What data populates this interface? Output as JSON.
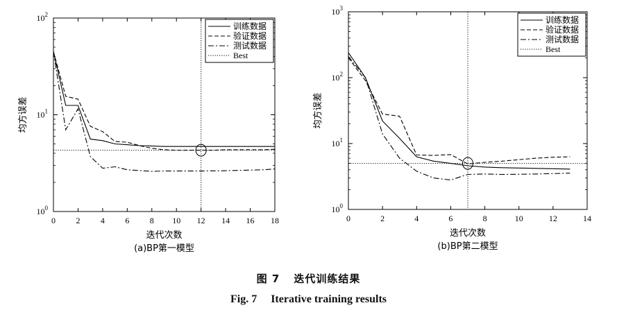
{
  "figure": {
    "caption_cn_label": "图 7",
    "caption_cn_text": "迭代训练结果",
    "caption_en_label": "Fig. 7",
    "caption_en_text": "Iterative training results"
  },
  "chart_data": [
    {
      "type": "line",
      "subtitle": "(a)BP第一模型",
      "xlabel": "迭代次数",
      "ylabel": "均方误差",
      "xlim": [
        0,
        18
      ],
      "xticks": [
        0,
        2,
        4,
        6,
        8,
        10,
        12,
        14,
        16,
        18
      ],
      "ylim": [
        1,
        100
      ],
      "yscale": "log",
      "yticks": [
        {
          "value": 1,
          "base": "10",
          "exp": "0"
        },
        {
          "value": 10,
          "base": "10",
          "exp": "1"
        },
        {
          "value": 100,
          "base": "10",
          "exp": "2"
        }
      ],
      "legend_position": "top-right",
      "best": {
        "x": 12,
        "y": 4.3,
        "label": "Best"
      },
      "series": [
        {
          "name": "训练数据",
          "style": "solid",
          "x": [
            0,
            1,
            2,
            3,
            4,
            5,
            6,
            7,
            8,
            9,
            10,
            11,
            12,
            13,
            14,
            15,
            16,
            17,
            18
          ],
          "y": [
            45,
            12.5,
            12.5,
            5.6,
            5.4,
            5.0,
            4.9,
            4.8,
            4.75,
            4.7,
            4.7,
            4.7,
            4.7,
            4.7,
            4.7,
            4.7,
            4.7,
            4.7,
            4.7
          ]
        },
        {
          "name": "验证数据",
          "style": "dashed",
          "x": [
            0,
            1,
            2,
            3,
            4,
            5,
            6,
            7,
            8,
            9,
            10,
            11,
            12,
            13,
            14,
            15,
            16,
            17,
            18
          ],
          "y": [
            45,
            15.5,
            14.5,
            7.6,
            6.7,
            5.3,
            5.2,
            4.8,
            4.5,
            4.35,
            4.3,
            4.3,
            4.3,
            4.3,
            4.35,
            4.35,
            4.35,
            4.35,
            4.4
          ]
        },
        {
          "name": "测试数据",
          "style": "dashdot",
          "x": [
            0,
            1,
            2,
            3,
            4,
            5,
            6,
            7,
            8,
            9,
            10,
            11,
            12,
            13,
            14,
            15,
            16,
            17,
            18
          ],
          "y": [
            45,
            7.0,
            11.5,
            3.7,
            2.8,
            2.9,
            2.7,
            2.65,
            2.6,
            2.62,
            2.62,
            2.62,
            2.62,
            2.63,
            2.64,
            2.66,
            2.68,
            2.7,
            2.75
          ]
        },
        {
          "name": "Best",
          "style": "dotted",
          "x": [],
          "y": []
        }
      ]
    },
    {
      "type": "line",
      "subtitle": "(b)BP第二模型",
      "xlabel": "迭代次数",
      "ylabel": "均方误差",
      "xlim": [
        0,
        14
      ],
      "xticks": [
        0,
        2,
        4,
        6,
        8,
        10,
        12,
        14
      ],
      "ylim": [
        1,
        1000
      ],
      "yscale": "log",
      "yticks": [
        {
          "value": 1,
          "base": "10",
          "exp": "0"
        },
        {
          "value": 10,
          "base": "10",
          "exp": "1"
        },
        {
          "value": 100,
          "base": "10",
          "exp": "2"
        },
        {
          "value": 1000,
          "base": "10",
          "exp": "3"
        }
      ],
      "legend_position": "top-right",
      "best": {
        "x": 7,
        "y": 5.0,
        "label": "Best"
      },
      "series": [
        {
          "name": "训练数据",
          "style": "solid",
          "x": [
            0,
            1,
            2,
            3,
            4,
            5,
            6,
            7,
            8,
            9,
            10,
            11,
            12,
            13
          ],
          "y": [
            240,
            100,
            22,
            12,
            6.3,
            5.4,
            5.0,
            4.6,
            4.4,
            4.3,
            4.25,
            4.2,
            4.15,
            4.1
          ]
        },
        {
          "name": "验证数据",
          "style": "dashed",
          "x": [
            0,
            1,
            2,
            3,
            4,
            5,
            6,
            7,
            8,
            9,
            10,
            11,
            12,
            13
          ],
          "y": [
            200,
            90,
            28,
            26,
            6.7,
            6.6,
            6.8,
            4.9,
            5.2,
            5.4,
            5.7,
            6.0,
            6.2,
            6.3
          ]
        },
        {
          "name": "测试数据",
          "style": "dashdot",
          "x": [
            0,
            1,
            2,
            3,
            4,
            5,
            6,
            7,
            8,
            9,
            10,
            11,
            12,
            13
          ],
          "y": [
            210,
            100,
            14,
            6.0,
            3.8,
            3.0,
            2.8,
            3.4,
            3.45,
            3.4,
            3.42,
            3.45,
            3.5,
            3.55
          ]
        },
        {
          "name": "Best",
          "style": "dotted",
          "x": [],
          "y": []
        }
      ]
    }
  ]
}
